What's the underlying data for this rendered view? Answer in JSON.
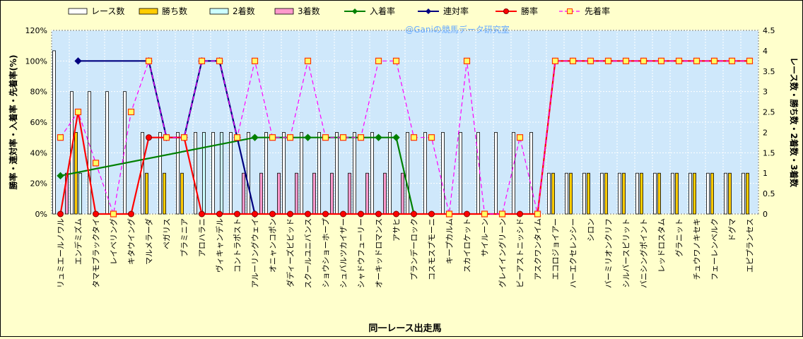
{
  "chart_data": {
    "type": "bar+line",
    "title": "",
    "watermark": "@Ganiの競馬データ研究室",
    "xlabel": "同一レース出走馬",
    "ylabel_left": "勝率・連対率・入着率・先着率(%)",
    "ylabel_right": "レース数・勝ち数・2着数・3着数",
    "ylim_left": [
      0,
      120
    ],
    "ylim_right": [
      0,
      4.5
    ],
    "yticks_left": [
      "0%",
      "20%",
      "40%",
      "60%",
      "80%",
      "100%",
      "120%"
    ],
    "yticks_right": [
      "0",
      "0.5",
      "1",
      "1.5",
      "2",
      "2.5",
      "3",
      "3.5",
      "4",
      "4.5"
    ],
    "grid": true,
    "legend_position": "top",
    "categories": [
      "リュミエールノワル",
      "エンデミズム",
      "タマモブラックタイ",
      "レイベリング",
      "キタウイング",
      "マルメラーダ",
      "ペガリス",
      "ブラミニア",
      "アロハラニ",
      "ヴィキャンデル",
      "コントラポスト",
      "アルーリングウェイ",
      "オニャンコポン",
      "ダディーズビビッド",
      "スクールユニバンス",
      "ショウショーホープ",
      "シュバルツカイザー",
      "シャドウフューリー",
      "オーキッドロマンス",
      "アサヒ",
      "プランデーロック",
      "コスモスプモーニ",
      "キープカルム",
      "スカイロケット",
      "サイルーン",
      "グレイイングリーン",
      "ビーアストニッシド",
      "アスクワンタイム",
      "エコロジョイアー",
      "ハーエクセレンシー",
      "シロン",
      "バーミリオンクリフ",
      "シルバースピリット",
      "バニシングポイント",
      "レッドロスタム",
      "グラニット",
      "チュウワノキセキ",
      "フェーレンベルク",
      "ドグマ",
      "エピプランセス"
    ],
    "series": [
      {
        "name": "レース数",
        "axis": "right",
        "kind": "bar",
        "color": "#ffffff",
        "values": [
          4,
          3,
          3,
          3,
          3,
          2,
          2,
          2,
          2,
          2,
          2,
          2,
          2,
          2,
          2,
          2,
          2,
          2,
          2,
          2,
          2,
          2,
          2,
          2,
          2,
          2,
          2,
          2,
          1,
          1,
          1,
          1,
          1,
          1,
          1,
          1,
          1,
          1,
          1,
          1
        ]
      },
      {
        "name": "勝ち数",
        "axis": "right",
        "kind": "bar",
        "color": "#ffcc00",
        "values": [
          0,
          2,
          0,
          0,
          0,
          1,
          1,
          1,
          0,
          0,
          0,
          0,
          0,
          0,
          0,
          0,
          0,
          0,
          0,
          0,
          0,
          0,
          0,
          0,
          0,
          0,
          0,
          0,
          1,
          1,
          1,
          1,
          1,
          1,
          1,
          1,
          1,
          1,
          1,
          1
        ]
      },
      {
        "name": "2着数",
        "axis": "right",
        "kind": "bar",
        "color": "#ccffff",
        "values": [
          0,
          1,
          0,
          0,
          0,
          0,
          0,
          0,
          2,
          2,
          0,
          0,
          0,
          0,
          0,
          0,
          0,
          0,
          0,
          0,
          0,
          0,
          0,
          0,
          0,
          0,
          0,
          0,
          0,
          0,
          0,
          0,
          0,
          0,
          0,
          0,
          0,
          0,
          0,
          0
        ]
      },
      {
        "name": "3着数",
        "axis": "right",
        "kind": "bar",
        "color": "#ff99cc",
        "values": [
          1,
          0,
          0,
          0,
          0,
          0,
          0,
          0,
          0,
          0,
          1,
          1,
          1,
          1,
          1,
          1,
          1,
          1,
          1,
          1,
          0,
          0,
          0,
          0,
          0,
          0,
          0,
          0,
          0,
          0,
          0,
          0,
          0,
          0,
          0,
          0,
          0,
          0,
          0,
          0
        ]
      },
      {
        "name": "入着率",
        "axis": "left",
        "kind": "line",
        "color": "#008000",
        "marker": "diamond",
        "values": [
          25,
          null,
          null,
          null,
          null,
          null,
          null,
          null,
          null,
          null,
          null,
          50,
          null,
          null,
          50,
          null,
          null,
          null,
          50,
          50,
          0,
          null,
          null,
          null,
          null,
          null,
          null,
          null,
          null,
          null,
          null,
          null,
          null,
          null,
          null,
          null,
          null,
          null,
          null,
          null
        ]
      },
      {
        "name": "連対率",
        "axis": "left",
        "kind": "line",
        "color": "#000080",
        "marker": "diamond",
        "values": [
          null,
          100,
          null,
          null,
          null,
          100,
          50,
          50,
          100,
          100,
          50,
          0,
          null,
          null,
          null,
          null,
          null,
          null,
          null,
          null,
          null,
          null,
          null,
          null,
          null,
          null,
          null,
          null,
          null,
          null,
          null,
          null,
          null,
          null,
          null,
          null,
          null,
          null,
          null,
          null
        ]
      },
      {
        "name": "勝率",
        "axis": "left",
        "kind": "line",
        "color": "#ff0000",
        "marker": "circle",
        "values": [
          0,
          66.7,
          0,
          0,
          0,
          50,
          50,
          50,
          0,
          0,
          0,
          0,
          0,
          0,
          0,
          0,
          0,
          0,
          0,
          0,
          0,
          0,
          0,
          0,
          0,
          0,
          0,
          0,
          100,
          100,
          100,
          100,
          100,
          100,
          100,
          100,
          100,
          100,
          100,
          100
        ]
      },
      {
        "name": "先着率",
        "axis": "left",
        "kind": "line",
        "color": "#ff00ff",
        "dashed": true,
        "marker": "square",
        "values": [
          50,
          66.7,
          33.3,
          0,
          66.7,
          100,
          50,
          50,
          100,
          100,
          50,
          100,
          50,
          50,
          100,
          50,
          50,
          50,
          100,
          100,
          50,
          50,
          0,
          100,
          0,
          0,
          50,
          0,
          100,
          100,
          100,
          100,
          100,
          100,
          100,
          100,
          100,
          100,
          100,
          100
        ]
      }
    ]
  }
}
